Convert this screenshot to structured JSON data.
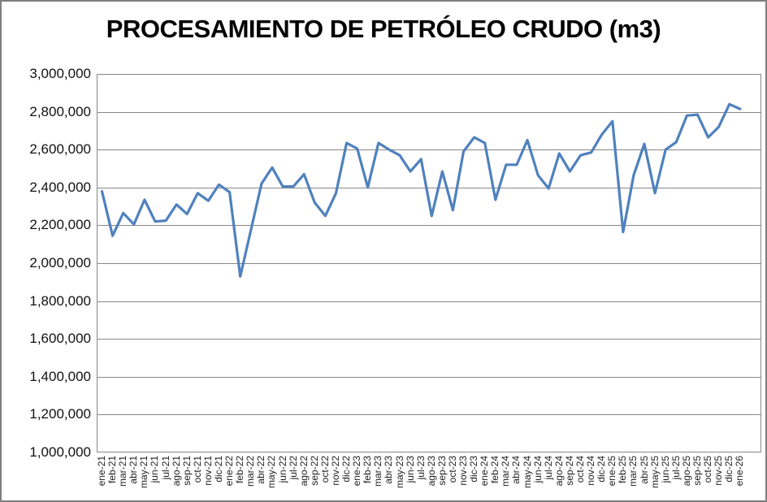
{
  "figure": {
    "title": "PROCESAMIENTO DE PETRÓLEO CRUDO (m3)"
  },
  "colors": {
    "series_line": "#4F81BD",
    "gridline": "#878787",
    "plot_border": "#878787",
    "frame_border": "#7F7F7F",
    "title_text": "#000000",
    "tick_text": "#111111"
  },
  "chart_data": {
    "type": "line",
    "title": "PROCESAMIENTO DE PETRÓLEO CRUDO (m3)",
    "legend": "none",
    "grid": "horizontal",
    "ylim": [
      1000000,
      3000000
    ],
    "ytick_step": 200000,
    "ytick_labels": [
      "3,000,000",
      "2,800,000",
      "2,600,000",
      "2,400,000",
      "2,200,000",
      "2,000,000",
      "1,800,000",
      "1,600,000",
      "1,400,000",
      "1,200,000",
      "1,000,000"
    ],
    "categories": [
      "ene-21",
      "feb-21",
      "mar-21",
      "abr-21",
      "may-21",
      "jun-21",
      "jul-21",
      "ago-21",
      "sep-21",
      "oct-21",
      "nov-21",
      "dic-21",
      "ene-22",
      "feb-22",
      "mar-22",
      "abr-22",
      "may-22",
      "jun-22",
      "jul-22",
      "ago-22",
      "sep-22",
      "oct-22",
      "nov-22",
      "dic-22",
      "ene-23",
      "feb-23",
      "mar-23",
      "abr-23",
      "may-23",
      "jun-23",
      "jul-23",
      "ago-23",
      "sep-23",
      "oct-23",
      "nov-23",
      "dic-23",
      "ene-24",
      "feb-24",
      "mar-24",
      "abr-24",
      "may-24",
      "jun-24",
      "jul-24",
      "ago-24",
      "sep-24",
      "oct-24",
      "nov-24",
      "dic-24",
      "ene-25",
      "feb-25",
      "mar-25",
      "abr-25",
      "may-25",
      "jun-25",
      "jul-25",
      "ago-25",
      "sep-25",
      "oct-25",
      "nov-25",
      "dic-25",
      "ene-26"
    ],
    "values": [
      2380000,
      2145000,
      2265000,
      2205000,
      2335000,
      2220000,
      2225000,
      2310000,
      2260000,
      2370000,
      2330000,
      2415000,
      2375000,
      1930000,
      2175000,
      2420000,
      2505000,
      2405000,
      2405000,
      2470000,
      2320000,
      2250000,
      2370000,
      2635000,
      2605000,
      2400000,
      2635000,
      2600000,
      2570000,
      2485000,
      2550000,
      2250000,
      2485000,
      2280000,
      2590000,
      2665000,
      2635000,
      2335000,
      2520000,
      2520000,
      2650000,
      2465000,
      2395000,
      2580000,
      2485000,
      2570000,
      2585000,
      2680000,
      2750000,
      2165000,
      2465000,
      2630000,
      2370000,
      2600000,
      2640000,
      2780000,
      2785000,
      2665000,
      2720000,
      2840000,
      2815000
    ]
  }
}
